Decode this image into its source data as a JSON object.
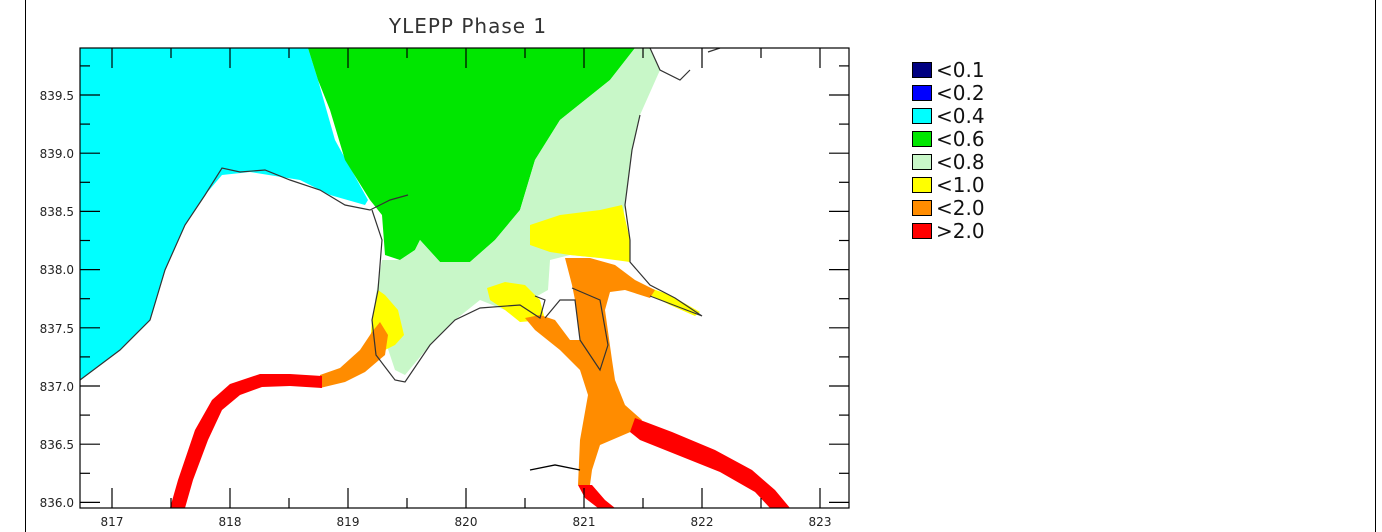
{
  "map": {
    "title": "YLEPP Phase 1",
    "x_ticks": [
      "817",
      "818",
      "819",
      "820",
      "821",
      "822",
      "823"
    ],
    "y_ticks": [
      "839.5",
      "839.0",
      "838.5",
      "838.0",
      "837.5",
      "837.0",
      "836.5",
      "836.0"
    ]
  },
  "legend": {
    "items": [
      {
        "label": "<0.1",
        "color": "#000080"
      },
      {
        "label": "<0.2",
        "color": "#0000ff"
      },
      {
        "label": "<0.4",
        "color": "#00ffff"
      },
      {
        "label": "<0.6",
        "color": "#00e600"
      },
      {
        "label": "<0.8",
        "color": "#c8f7c8"
      },
      {
        "label": "<1.0",
        "color": "#ffff00"
      },
      {
        "label": "<2.0",
        "color": "#ff8c00"
      },
      {
        "label": ">2.0",
        "color": "#ff0000"
      }
    ]
  }
}
